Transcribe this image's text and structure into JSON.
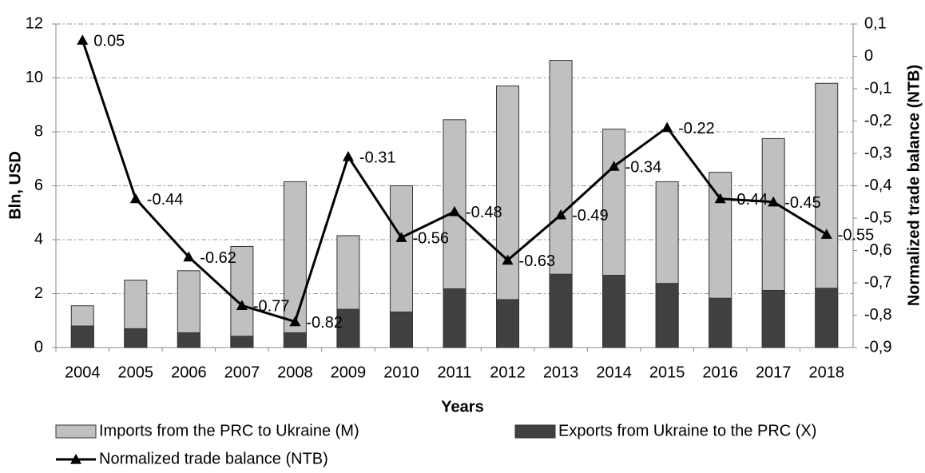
{
  "chart_data": {
    "type": "bar",
    "categories": [
      "2004",
      "2005",
      "2006",
      "2007",
      "2008",
      "2009",
      "2010",
      "2011",
      "2012",
      "2013",
      "2014",
      "2015",
      "2016",
      "2017",
      "2018"
    ],
    "series": [
      {
        "name": "Imports from the PRC to Ukraine (M)",
        "color": "#c0c0c0",
        "values": [
          1.55,
          2.5,
          2.85,
          3.75,
          6.15,
          4.15,
          6.0,
          8.45,
          9.7,
          10.65,
          8.1,
          6.15,
          6.5,
          7.75,
          9.8
        ]
      },
      {
        "name": "Exports from Ukraine to the PRC (X)",
        "color": "#404040",
        "values": [
          0.8,
          0.7,
          0.55,
          0.42,
          0.55,
          1.42,
          1.32,
          2.18,
          1.78,
          2.72,
          2.68,
          2.38,
          1.83,
          2.12,
          2.2
        ]
      },
      {
        "name": "Normalized trade balance (NTB)",
        "color": "#000000",
        "type": "line",
        "axis": "y2",
        "values": [
          0.05,
          -0.44,
          -0.62,
          -0.77,
          -0.82,
          -0.31,
          -0.56,
          -0.48,
          -0.63,
          -0.49,
          -0.34,
          -0.22,
          -0.44,
          -0.45,
          -0.55
        ]
      }
    ],
    "xlabel": "Years",
    "ylabel": "Bln, USD",
    "y2label": "Normalized trade balance (NTB)",
    "ylim": [
      0,
      12
    ],
    "yticks": [
      0,
      2,
      4,
      6,
      8,
      10,
      12
    ],
    "y2lim": [
      -0.9,
      0.1
    ],
    "y2ticks": [
      {
        "value": 0.1,
        "label": "0,1"
      },
      0,
      {
        "value": -0.1,
        "label": "-0,1"
      },
      {
        "value": -0.2,
        "label": "-0,2"
      },
      {
        "value": -0.3,
        "label": "-0,3"
      },
      {
        "value": -0.4,
        "label": "-0,4"
      },
      {
        "value": -0.5,
        "label": "-0,5"
      },
      {
        "value": -0.6,
        "label": "-0,6"
      },
      {
        "value": -0.7,
        "label": "-0,7"
      },
      {
        "value": -0.8,
        "label": "-0,8"
      },
      {
        "value": -0.9,
        "label": "-0,9"
      }
    ],
    "grid": true
  }
}
